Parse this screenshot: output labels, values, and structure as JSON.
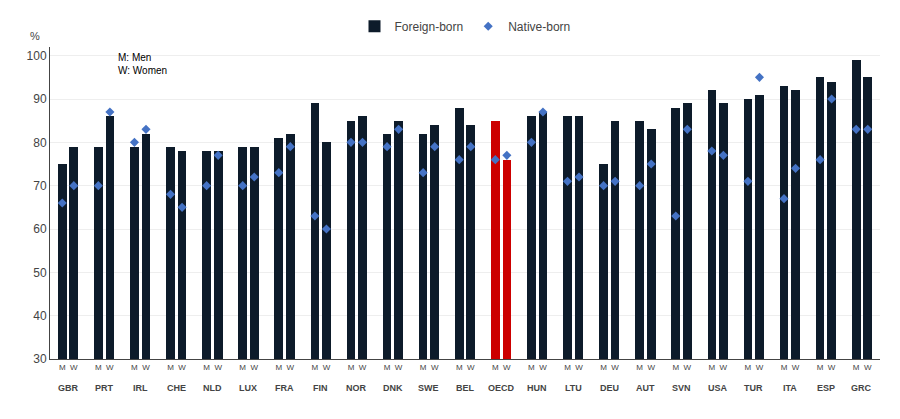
{
  "chart_data": {
    "type": "bar",
    "categories": [
      "GBR",
      "PRT",
      "IRL",
      "CHE",
      "NLD",
      "LUX",
      "FRA",
      "FIN",
      "NOR",
      "DNK",
      "SWE",
      "BEL",
      "OECD",
      "HUN",
      "LTU",
      "DEU",
      "AUT",
      "SVN",
      "USA",
      "TUR",
      "ITA",
      "ESP",
      "GRC"
    ],
    "subcategories": [
      "M",
      "W"
    ],
    "series": [
      {
        "name": "Foreign-born",
        "type": "bar",
        "colors": {
          "M": [
            "#0d1b2a",
            "#0d1b2a",
            "#0d1b2a",
            "#0d1b2a",
            "#0d1b2a",
            "#0d1b2a",
            "#0d1b2a",
            "#0d1b2a",
            "#0d1b2a",
            "#0d1b2a",
            "#0d1b2a",
            "#0d1b2a",
            "#cc0000",
            "#0d1b2a",
            "#0d1b2a",
            "#0d1b2a",
            "#0d1b2a",
            "#0d1b2a",
            "#0d1b2a",
            "#0d1b2a",
            "#0d1b2a",
            "#0d1b2a",
            "#0d1b2a"
          ],
          "W": [
            "#0d1b2a",
            "#0d1b2a",
            "#0d1b2a",
            "#0d1b2a",
            "#0d1b2a",
            "#0d1b2a",
            "#0d1b2a",
            "#0d1b2a",
            "#0d1b2a",
            "#0d1b2a",
            "#0d1b2a",
            "#0d1b2a",
            "#cc0000",
            "#0d1b2a",
            "#0d1b2a",
            "#0d1b2a",
            "#0d1b2a",
            "#0d1b2a",
            "#0d1b2a",
            "#0d1b2a",
            "#0d1b2a",
            "#0d1b2a",
            "#0d1b2a"
          ]
        },
        "values": {
          "M": [
            75,
            79,
            79,
            79,
            78,
            79,
            81,
            89,
            85,
            82,
            82,
            88,
            85,
            86,
            86,
            75,
            85,
            88,
            92,
            90,
            93,
            95,
            99
          ],
          "W": [
            79,
            86,
            82,
            78,
            78,
            79,
            82,
            80,
            86,
            85,
            84,
            84,
            76,
            87,
            86,
            85,
            83,
            89,
            89,
            91,
            92,
            94,
            95
          ]
        }
      },
      {
        "name": "Native-born",
        "type": "scatter",
        "marker": "diamond",
        "color": "#4472c4",
        "values": {
          "M": [
            66,
            70,
            80,
            68,
            70,
            70,
            73,
            63,
            80,
            79,
            73,
            76,
            76,
            80,
            71,
            70,
            70,
            63,
            78,
            71,
            67,
            76,
            83
          ],
          "W": [
            70,
            87,
            83,
            65,
            77,
            72,
            79,
            60,
            80,
            83,
            79,
            79,
            77,
            87,
            72,
            71,
            75,
            83,
            77,
            95,
            74,
            90,
            83
          ]
        }
      }
    ],
    "ylabel": "%",
    "annotation": "M: Men\nW: Women",
    "ylim": [
      30,
      102
    ],
    "yticks": [
      30,
      40,
      50,
      60,
      70,
      80,
      90,
      100
    ],
    "grid": true,
    "legend": "top"
  }
}
